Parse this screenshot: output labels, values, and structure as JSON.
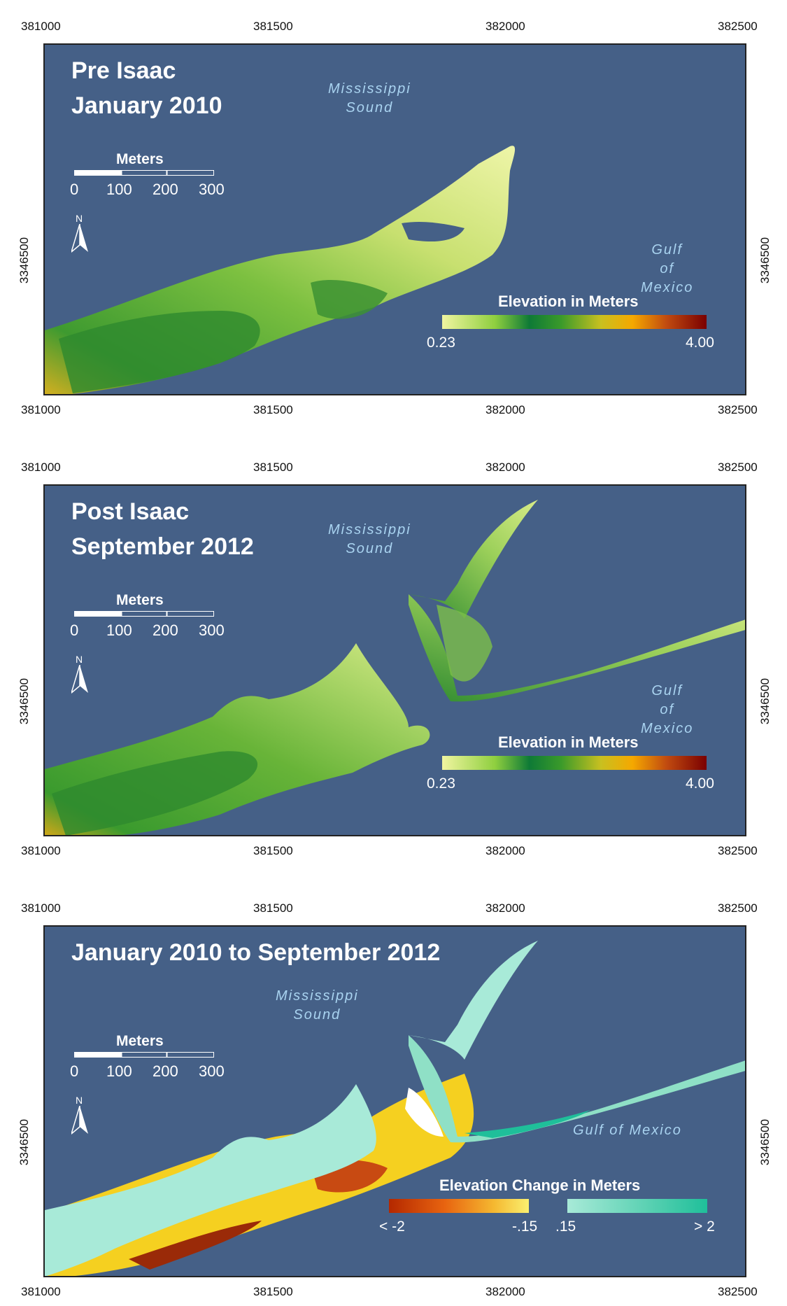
{
  "panels": [
    {
      "title_line1": "Pre Isaac",
      "title_line2": "January 2010",
      "sound_label_1": "Mississippi",
      "sound_label_2": "Sound",
      "gulf_label_1": "Gulf",
      "gulf_label_2": "of",
      "gulf_label_3": "Mexico",
      "legend_title": "Elevation in Meters",
      "legend_min": "0.23",
      "legend_max": "4.00"
    },
    {
      "title_line1": "Post Isaac",
      "title_line2": "September 2012",
      "sound_label_1": "Mississippi",
      "sound_label_2": "Sound",
      "gulf_label_1": "Gulf",
      "gulf_label_2": "of",
      "gulf_label_3": "Mexico",
      "legend_title": "Elevation in Meters",
      "legend_min": "0.23",
      "legend_max": "4.00"
    },
    {
      "title_line1": "January 2010 to September 2012",
      "sound_label_1": "Mississippi",
      "sound_label_2": "Sound",
      "gulf_label": "Gulf of Mexico",
      "legend_title": "Elevation Change in Meters",
      "legend_neg_min": "< -2",
      "legend_neg_max": "-.15",
      "legend_pos_min": ".15",
      "legend_pos_max": "> 2"
    }
  ],
  "axes": {
    "x_ticks": [
      "381000",
      "381500",
      "382000",
      "382500"
    ],
    "y_tick": "3346500"
  },
  "scalebar": {
    "title": "Meters",
    "labels": [
      "0",
      "100",
      "200",
      "300"
    ]
  },
  "north_arrow": "N",
  "colors": {
    "water": "#456087",
    "elev_low": "#f0f5a0",
    "elev_mid": "#1e8a32",
    "elev_high_orange": "#f5a800",
    "elev_max": "#7a0000",
    "change_neg": "#b42800",
    "change_pos": "#1fbf9a"
  }
}
